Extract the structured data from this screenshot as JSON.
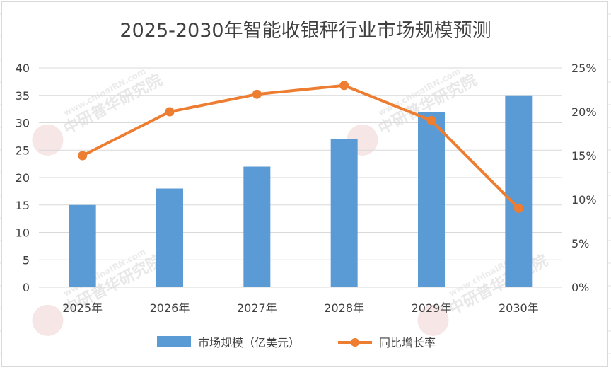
{
  "chart_data": {
    "type": "bar",
    "title": "2025-2030年智能收银秤行业市场规模预测",
    "categories": [
      "2025年",
      "2026年",
      "2027年",
      "2028年",
      "2029年",
      "2030年"
    ],
    "series": [
      {
        "name": "市场规模（亿美元）",
        "type": "bar",
        "axis": "left",
        "color": "#5b9bd5",
        "values": [
          15,
          18,
          22,
          27,
          32,
          35
        ]
      },
      {
        "name": "同比增长率",
        "type": "line",
        "axis": "right",
        "color": "#ed7d31",
        "values": [
          15,
          20,
          22,
          23,
          19,
          9
        ]
      }
    ],
    "y_left": {
      "min": 0,
      "max": 40,
      "ticks": [
        "0",
        "5",
        "10",
        "15",
        "20",
        "25",
        "30",
        "35",
        "40"
      ]
    },
    "y_right": {
      "min": 0,
      "max": 25,
      "ticks": [
        "0%",
        "5%",
        "10%",
        "15%",
        "20%",
        "25%"
      ]
    },
    "grid": true,
    "legend_position": "bottom"
  },
  "watermark": {
    "brand": "中研普华研究院",
    "url": "www.chinaIRN.com",
    "logo": "CIRN"
  }
}
